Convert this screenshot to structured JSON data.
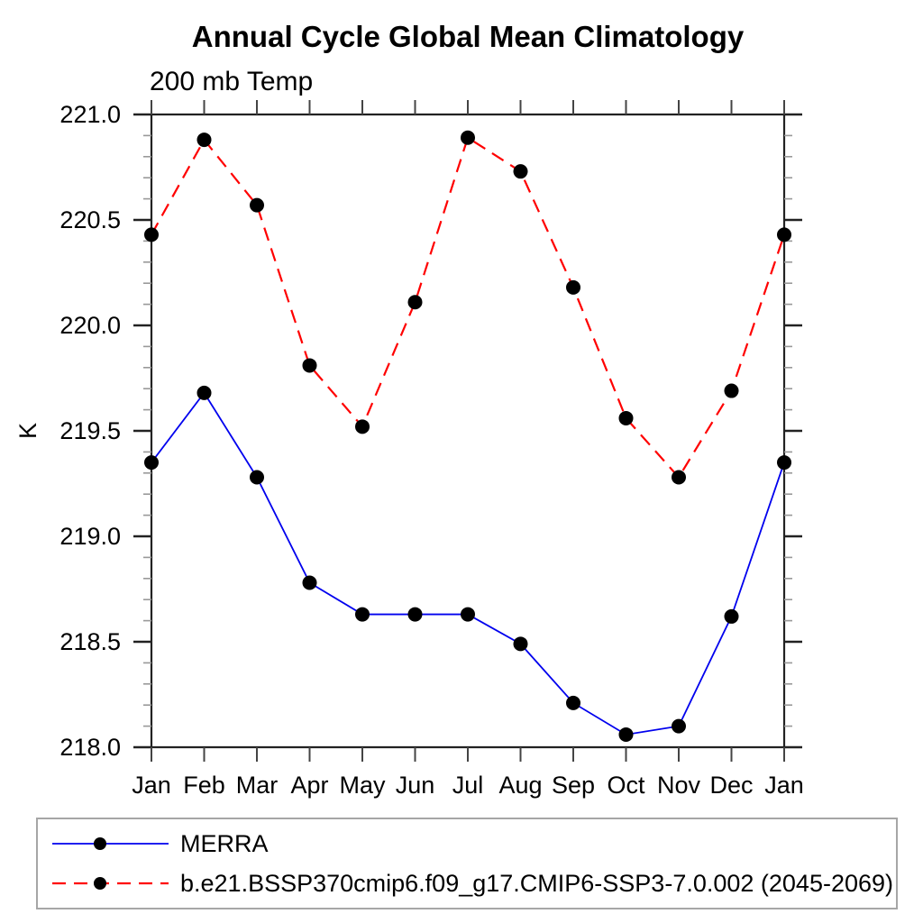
{
  "header": {
    "title": "Annual Cycle Global Mean Climatology",
    "subtitle": "200 mb Temp"
  },
  "chart_data": {
    "type": "line",
    "title": "Annual Cycle Global Mean Climatology",
    "subtitle": "200 mb Temp",
    "xlabel": "",
    "ylabel": "K",
    "categories": [
      "Jan",
      "Feb",
      "Mar",
      "Apr",
      "May",
      "Jun",
      "Jul",
      "Aug",
      "Sep",
      "Oct",
      "Nov",
      "Dec",
      "Jan"
    ],
    "ylim": [
      218.0,
      221.0
    ],
    "ytick_major": 0.5,
    "ytick_minor": 0.1,
    "grid": false,
    "legend_position": "bottom",
    "marker": "filled-circle",
    "marker_color": "#000000",
    "series": [
      {
        "name": "MERRA",
        "color": "#0000ee",
        "style": "solid",
        "values": [
          219.35,
          219.68,
          219.28,
          218.78,
          218.63,
          218.63,
          218.63,
          218.49,
          218.21,
          218.06,
          218.1,
          218.62,
          219.35
        ]
      },
      {
        "name": "b.e21.BSSP370cmip6.f09_g17.CMIP6-SSP3-7.0.002 (2045-2069)",
        "color": "#ff0000",
        "style": "dashed",
        "values": [
          220.43,
          220.88,
          220.57,
          219.81,
          219.52,
          220.11,
          220.89,
          220.73,
          220.18,
          219.56,
          219.28,
          219.69,
          220.43
        ]
      }
    ]
  }
}
